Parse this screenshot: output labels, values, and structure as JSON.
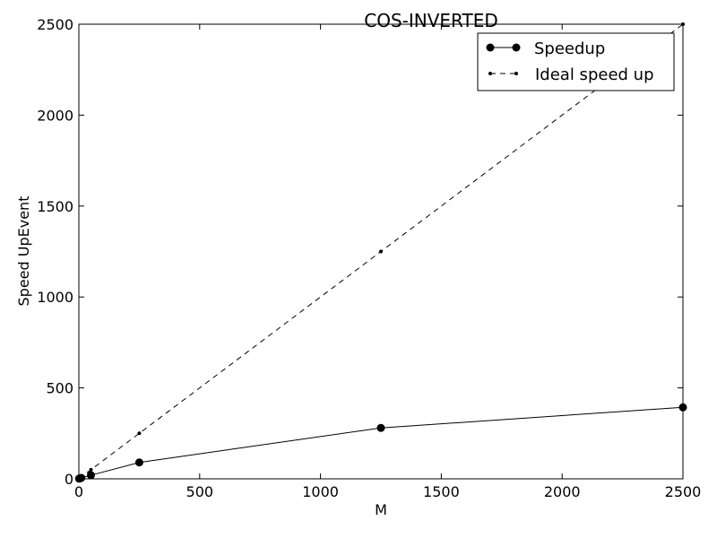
{
  "chart_data": {
    "type": "line",
    "title": "COS-INVERTED",
    "xlabel": "M",
    "ylabel": "Speed UpEvent",
    "xlim": [
      0,
      2500
    ],
    "ylim": [
      0,
      2500
    ],
    "x_ticks": [
      "0",
      "500",
      "1000",
      "1500",
      "2000",
      "2500"
    ],
    "y_ticks": [
      "0",
      "500",
      "1000",
      "1500",
      "2000",
      "2500"
    ],
    "grid": false,
    "legend": {
      "placement": "top-right"
    },
    "series": [
      {
        "name": "Speedup",
        "style": "solid line, large circle markers",
        "color": "#000000",
        "x": [
          1,
          5,
          10,
          50,
          250,
          1250,
          2500
        ],
        "y": [
          1,
          3,
          5,
          20,
          90,
          280,
          393
        ]
      },
      {
        "name": "Ideal speed up",
        "style": "dashed line, small dot markers",
        "color": "#000000",
        "x": [
          1,
          5,
          10,
          50,
          250,
          1250,
          2500
        ],
        "y": [
          1,
          5,
          10,
          50,
          250,
          1250,
          2500
        ]
      }
    ]
  }
}
